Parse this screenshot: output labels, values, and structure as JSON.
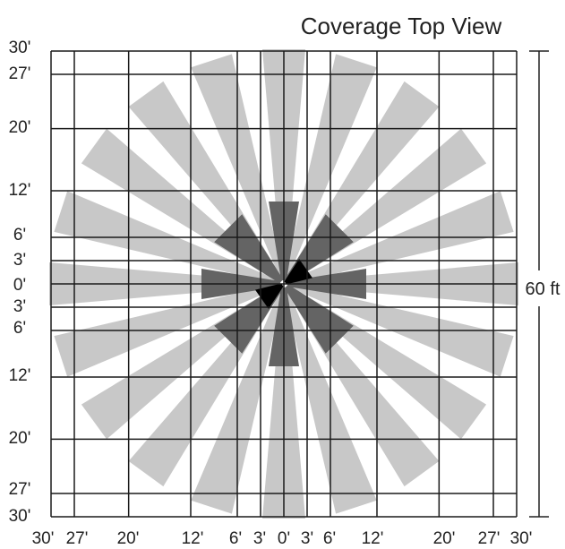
{
  "title": "Coverage Top View",
  "dimension_label": "60 ft",
  "y_ticks": [
    "30'",
    "27'",
    "20'",
    "12'",
    "6'",
    "3'",
    "0'",
    "3'",
    "6'",
    "12'",
    "20'",
    "27'",
    "30'"
  ],
  "x_ticks": [
    "30'",
    "27'",
    "20'",
    "12'",
    "6'",
    "3'",
    "0'",
    "3'",
    "6'",
    "12'",
    "20'",
    "27'",
    "30'"
  ],
  "zones": {
    "long_range_beams": 20,
    "mid_range_beams": 8,
    "short_range_beams": 2
  },
  "colors": {
    "long_range": "#c8c8c8",
    "mid_range": "#646464",
    "short_range": "#000000",
    "grid": "#1a1a1a"
  }
}
